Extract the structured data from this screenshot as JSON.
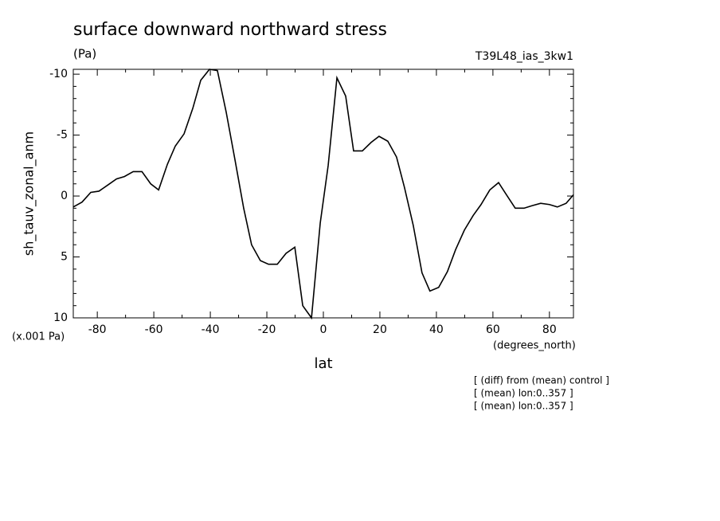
{
  "chart_data": {
    "type": "line",
    "title": "surface downward northward stress",
    "subtitle": "(Pa)",
    "run_label": "T39L48_ias_3kw1",
    "ylabel": "sh_tauv_zonal_anm",
    "yunits": "(x.001 Pa)",
    "xunits": "(degrees_north)",
    "xlabel": "lat",
    "notes": [
      "[ (diff) from (mean) control ]",
      "[ (mean) lon:0..357 ]",
      "[ (mean) lon:0..357 ]"
    ],
    "color": "#000000",
    "x": [
      -88.5,
      -85.4,
      -82.3,
      -79.4,
      -76.3,
      -73.2,
      -70.4,
      -67.3,
      -64.2,
      -61.1,
      -58.3,
      -55.2,
      -52.4,
      -49.3,
      -46.2,
      -43.4,
      -40.3,
      -37.5,
      -34.4,
      -31.3,
      -28.2,
      -25.4,
      -22.3,
      -19.4,
      -16.3,
      -13.2,
      -10.1,
      -7.3,
      -4.2,
      -1.1,
      1.7,
      4.8,
      7.9,
      10.7,
      13.8,
      16.9,
      19.7,
      22.8,
      25.9,
      28.7,
      31.8,
      34.9,
      37.7,
      40.8,
      43.9,
      46.8,
      49.9,
      53.0,
      55.8,
      58.9,
      62.0,
      64.8,
      67.9,
      71.0,
      73.8,
      76.9,
      80.0,
      82.8,
      85.9,
      88.5
    ],
    "values": [
      0.9,
      0.5,
      -0.3,
      -0.4,
      -0.9,
      -1.4,
      -1.6,
      -2.0,
      -2.0,
      -1.0,
      -0.5,
      -2.6,
      -4.1,
      -5.1,
      -7.2,
      -9.5,
      -10.4,
      -10.3,
      -6.9,
      -3.0,
      1.0,
      4.0,
      5.3,
      5.6,
      5.6,
      4.7,
      4.2,
      9.0,
      10.0,
      2.2,
      -2.5,
      -9.7,
      -8.2,
      -3.7,
      -3.7,
      -4.4,
      -4.9,
      -4.5,
      -3.2,
      -0.7,
      2.4,
      6.3,
      7.8,
      7.5,
      6.2,
      4.4,
      2.8,
      1.6,
      0.7,
      -0.5,
      -1.1,
      -0.1,
      1.0,
      1.0,
      0.8,
      0.6,
      0.7,
      0.9,
      0.6,
      -0.1
    ],
    "xlim": [
      -88.5,
      88.5
    ],
    "xticks": [
      -80,
      -60,
      -40,
      -20,
      0,
      20,
      40,
      60,
      80
    ],
    "ylim": [
      10,
      -10.4
    ],
    "yticks": [
      -10,
      -5,
      0,
      5,
      10
    ],
    "grid": false
  }
}
